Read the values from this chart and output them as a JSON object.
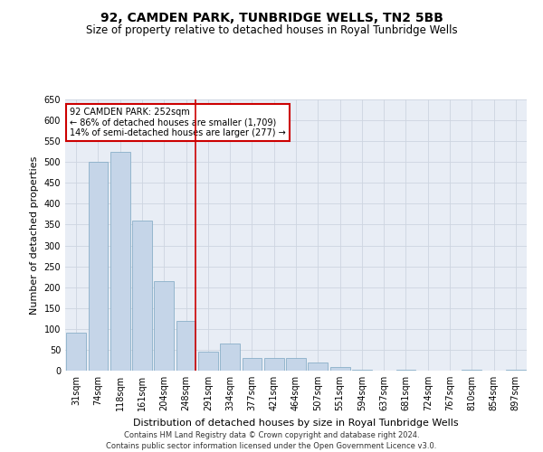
{
  "title": "92, CAMDEN PARK, TUNBRIDGE WELLS, TN2 5BB",
  "subtitle": "Size of property relative to detached houses in Royal Tunbridge Wells",
  "xlabel": "Distribution of detached houses by size in Royal Tunbridge Wells",
  "ylabel": "Number of detached properties",
  "bar_labels": [
    "31sqm",
    "74sqm",
    "118sqm",
    "161sqm",
    "204sqm",
    "248sqm",
    "291sqm",
    "334sqm",
    "377sqm",
    "421sqm",
    "464sqm",
    "507sqm",
    "551sqm",
    "594sqm",
    "637sqm",
    "681sqm",
    "724sqm",
    "767sqm",
    "810sqm",
    "854sqm",
    "897sqm"
  ],
  "bar_values": [
    90,
    500,
    525,
    360,
    215,
    120,
    45,
    65,
    30,
    30,
    30,
    20,
    8,
    3,
    0,
    2,
    0,
    0,
    2,
    0,
    2
  ],
  "bar_color": "#c5d5e8",
  "bar_edge_color": "#8aafc8",
  "red_line_x": 5.43,
  "ylim": [
    0,
    650
  ],
  "yticks": [
    0,
    50,
    100,
    150,
    200,
    250,
    300,
    350,
    400,
    450,
    500,
    550,
    600,
    650
  ],
  "annotation_text": "92 CAMDEN PARK: 252sqm\n← 86% of detached houses are smaller (1,709)\n14% of semi-detached houses are larger (277) →",
  "footer_line1": "Contains HM Land Registry data © Crown copyright and database right 2024.",
  "footer_line2": "Contains public sector information licensed under the Open Government Licence v3.0.",
  "grid_color": "#cdd5e0",
  "bg_color": "#e8edf5",
  "title_fontsize": 10,
  "subtitle_fontsize": 8.5,
  "tick_fontsize": 7,
  "ylabel_fontsize": 8,
  "xlabel_fontsize": 8,
  "annotation_fontsize": 7,
  "footer_fontsize": 6,
  "annotation_box_color": "#ffffff",
  "annotation_box_edge": "#cc0000"
}
